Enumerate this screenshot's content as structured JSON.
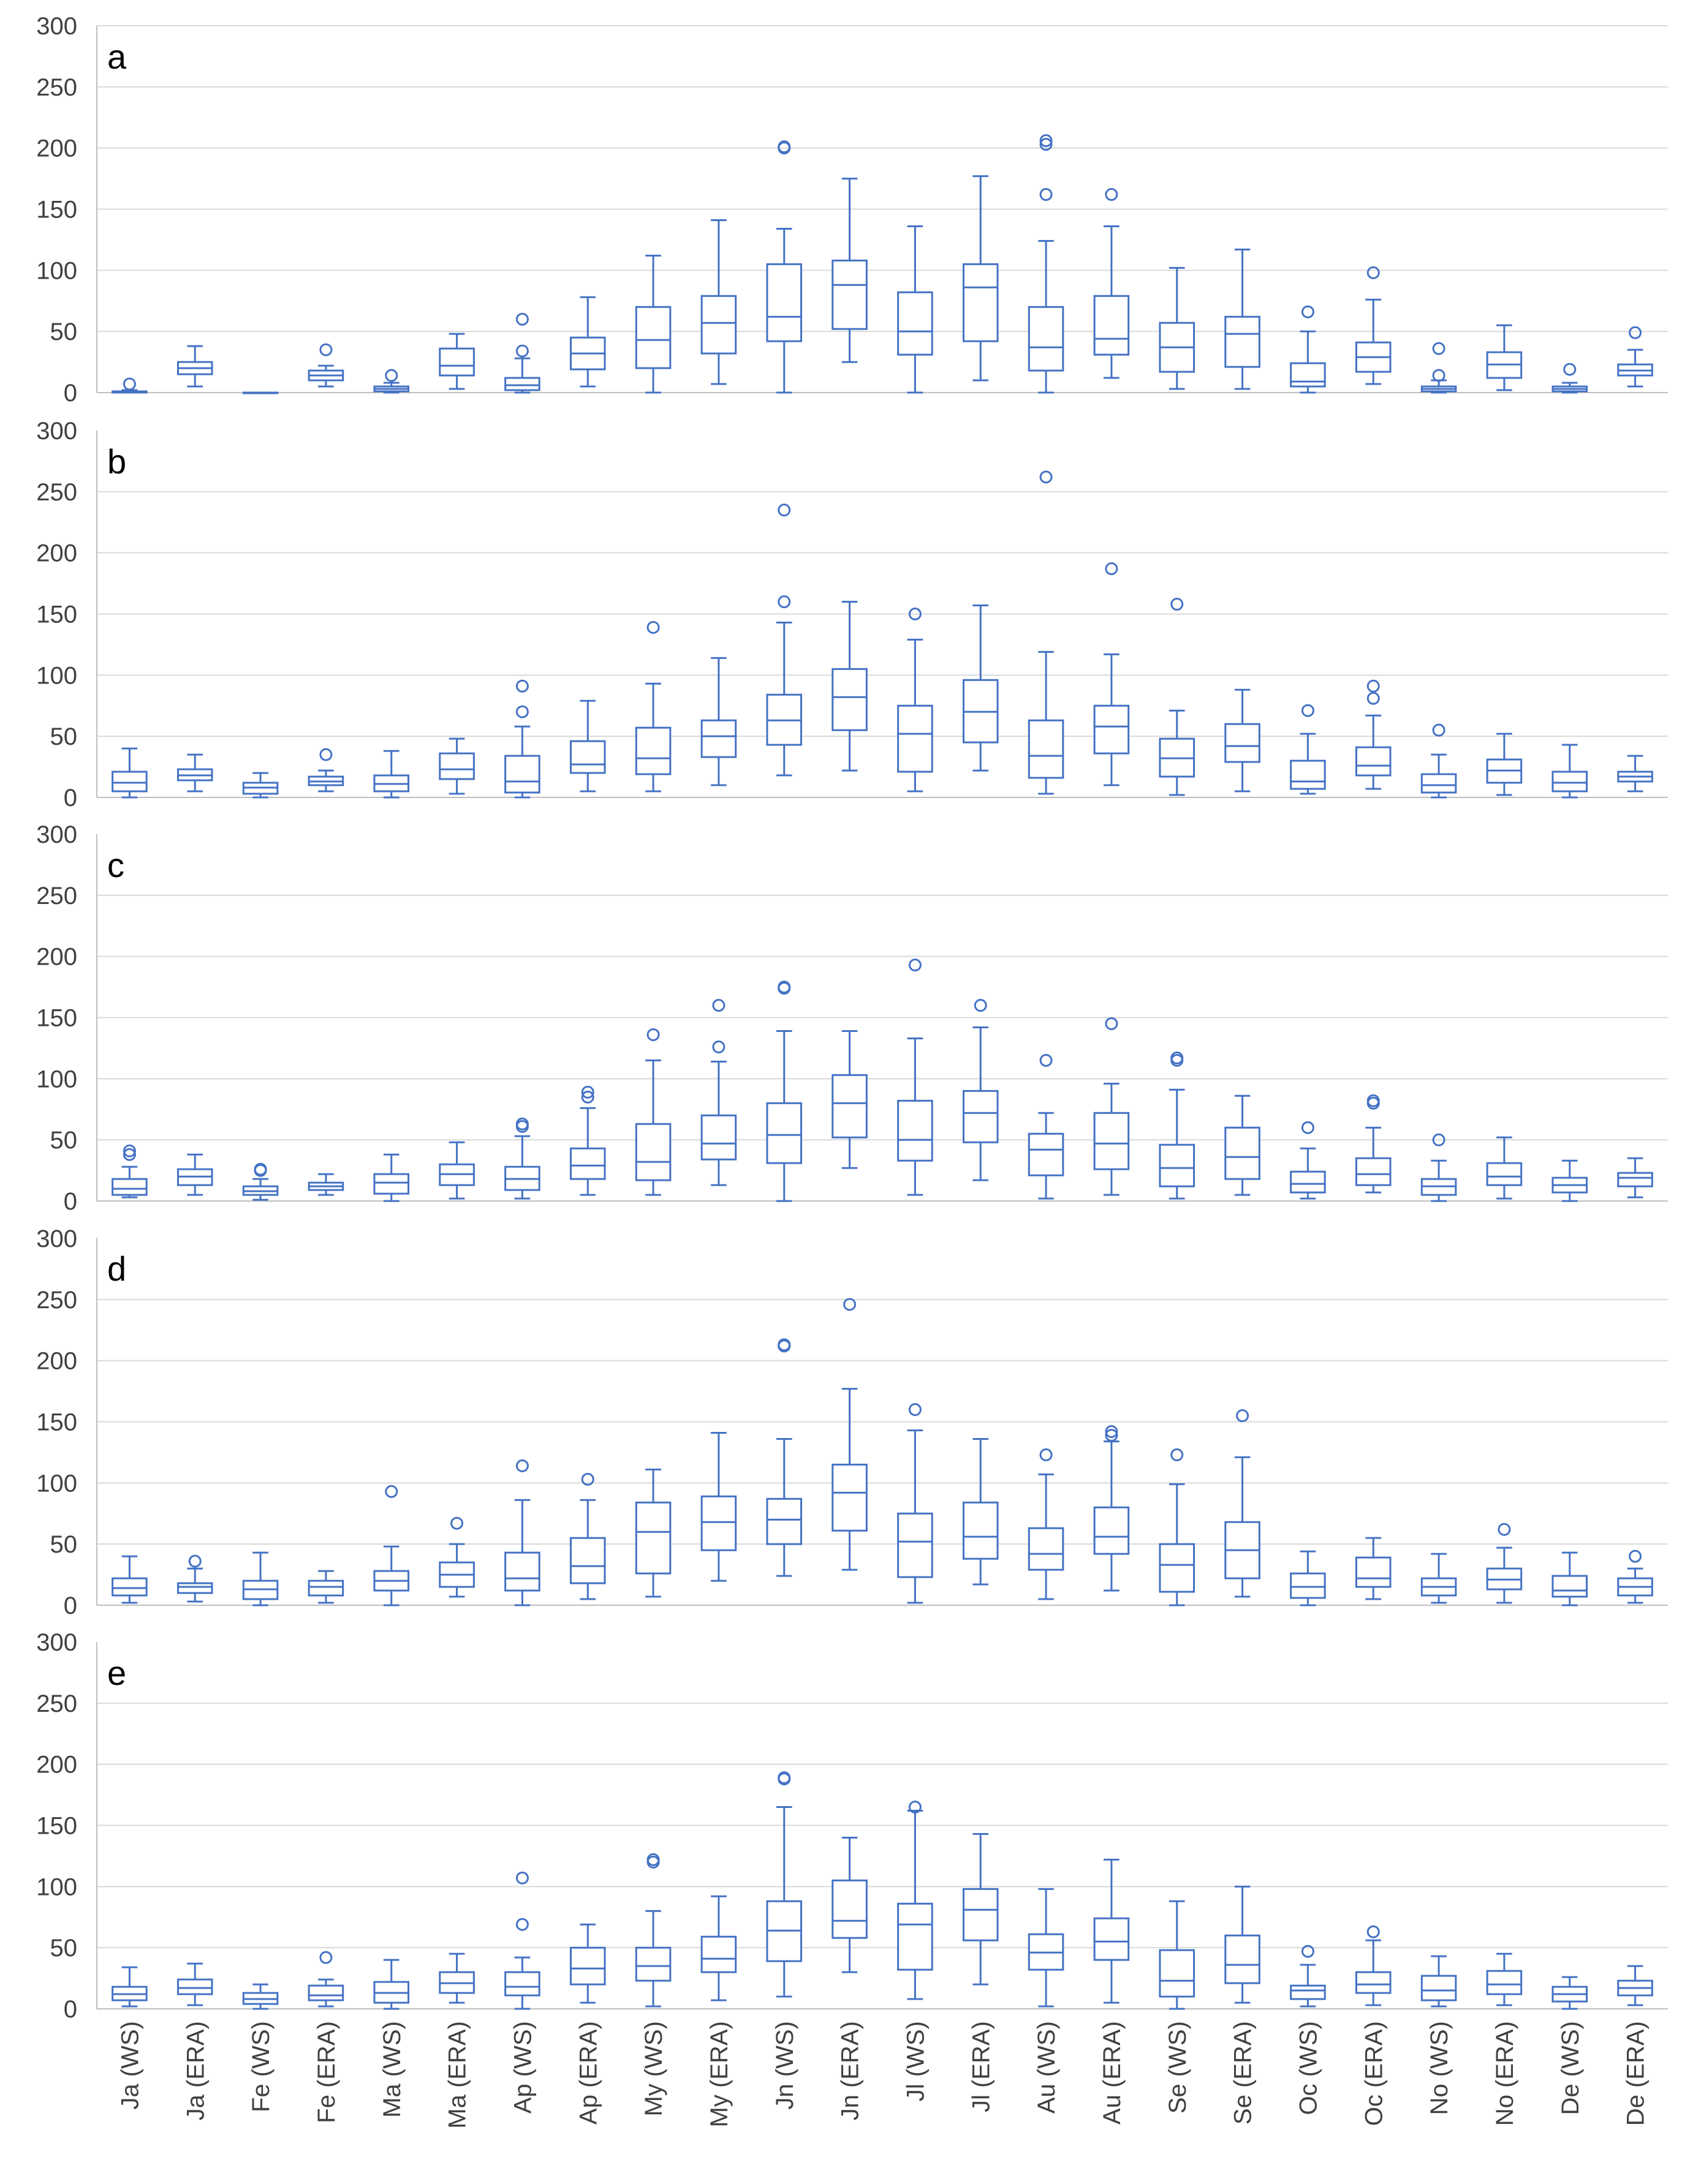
{
  "chart_data": {
    "type": "box",
    "categories": [
      "Ja (WS)",
      "Ja (ERA)",
      "Fe (WS)",
      "Fe (ERA)",
      "Ma (WS)",
      "Ma (ERA)",
      "Ap (WS)",
      "Ap (ERA)",
      "My (WS)",
      "My (ERA)",
      "Jn (WS)",
      "Jn (ERA)",
      "Jl (WS)",
      "Jl (ERA)",
      "Au (WS)",
      "Au (ERA)",
      "Se (WS)",
      "Se (ERA)",
      "Oc (WS)",
      "Oc (ERA)",
      "No (WS)",
      "No (ERA)",
      "De (WS)",
      "De (ERA)"
    ],
    "yticks": [
      "0",
      "50",
      "100",
      "150",
      "200",
      "250",
      "300"
    ],
    "ylim": [
      0,
      300
    ],
    "grid": true,
    "colors": {
      "box": "#4472C4",
      "grid": "#D9D9D9",
      "axis": "#BFBFBF"
    },
    "panels": [
      {
        "label": "a",
        "boxes": [
          [
            0,
            0,
            0,
            1,
            2,
            [
              7
            ]
          ],
          [
            5,
            15,
            20,
            25,
            38,
            []
          ],
          [
            0,
            0,
            0,
            0,
            0,
            []
          ],
          [
            5,
            10,
            14,
            18,
            22,
            [
              35
            ]
          ],
          [
            0,
            1,
            3,
            5,
            8,
            [
              14
            ]
          ],
          [
            3,
            14,
            22,
            36,
            48,
            []
          ],
          [
            0,
            2,
            6,
            12,
            28,
            [
              34,
              60
            ]
          ],
          [
            5,
            19,
            32,
            45,
            78,
            []
          ],
          [
            0,
            20,
            43,
            70,
            112,
            []
          ],
          [
            7,
            32,
            57,
            79,
            141,
            []
          ],
          [
            0,
            42,
            62,
            105,
            134,
            [
              200,
              201
            ]
          ],
          [
            25,
            52,
            88,
            108,
            175,
            []
          ],
          [
            0,
            31,
            50,
            82,
            136,
            []
          ],
          [
            10,
            42,
            86,
            105,
            177,
            []
          ],
          [
            0,
            18,
            37,
            70,
            124,
            [
              162,
              203,
              206
            ]
          ],
          [
            12,
            31,
            44,
            79,
            136,
            [
              162
            ]
          ],
          [
            3,
            17,
            37,
            57,
            102,
            []
          ],
          [
            3,
            21,
            48,
            62,
            117,
            []
          ],
          [
            0,
            5,
            9,
            24,
            50,
            [
              66
            ]
          ],
          [
            7,
            17,
            29,
            41,
            76,
            [
              98
            ]
          ],
          [
            0,
            1,
            3,
            5,
            10,
            [
              14,
              36
            ]
          ],
          [
            2,
            12,
            23,
            33,
            55,
            []
          ],
          [
            0,
            1,
            3,
            5,
            8,
            [
              19
            ]
          ],
          [
            5,
            14,
            18,
            23,
            35,
            [
              49
            ]
          ]
        ]
      },
      {
        "label": "b",
        "boxes": [
          [
            0,
            5,
            12,
            21,
            40,
            []
          ],
          [
            5,
            14,
            18,
            23,
            35,
            []
          ],
          [
            0,
            3,
            8,
            12,
            20,
            []
          ],
          [
            5,
            10,
            13,
            17,
            22,
            [
              35
            ]
          ],
          [
            0,
            5,
            11,
            18,
            38,
            []
          ],
          [
            3,
            15,
            23,
            36,
            48,
            []
          ],
          [
            0,
            4,
            13,
            34,
            58,
            [
              70,
              91
            ]
          ],
          [
            5,
            20,
            27,
            46,
            79,
            []
          ],
          [
            5,
            19,
            32,
            57,
            93,
            [
              139
            ]
          ],
          [
            10,
            33,
            50,
            63,
            114,
            []
          ],
          [
            18,
            43,
            63,
            84,
            143,
            [
              160,
              235
            ]
          ],
          [
            22,
            55,
            82,
            105,
            160,
            []
          ],
          [
            5,
            21,
            52,
            75,
            129,
            [
              150
            ]
          ],
          [
            22,
            45,
            70,
            96,
            157,
            []
          ],
          [
            3,
            16,
            34,
            63,
            119,
            [
              262
            ]
          ],
          [
            10,
            36,
            58,
            75,
            117,
            [
              187
            ]
          ],
          [
            2,
            17,
            32,
            48,
            71,
            [
              158
            ]
          ],
          [
            5,
            29,
            42,
            60,
            88,
            []
          ],
          [
            3,
            7,
            13,
            30,
            52,
            [
              71
            ]
          ],
          [
            7,
            18,
            26,
            41,
            67,
            [
              81,
              91
            ]
          ],
          [
            0,
            4,
            10,
            19,
            35,
            [
              55
            ]
          ],
          [
            2,
            12,
            22,
            31,
            52,
            []
          ],
          [
            0,
            5,
            12,
            21,
            43,
            []
          ],
          [
            5,
            13,
            17,
            21,
            34,
            []
          ]
        ]
      },
      {
        "label": "c",
        "boxes": [
          [
            3,
            5,
            10,
            18,
            28,
            [
              38,
              41
            ]
          ],
          [
            5,
            13,
            20,
            26,
            38,
            []
          ],
          [
            1,
            5,
            8,
            12,
            18,
            [
              25,
              26
            ]
          ],
          [
            5,
            9,
            12,
            15,
            22,
            []
          ],
          [
            0,
            6,
            15,
            22,
            38,
            []
          ],
          [
            2,
            13,
            22,
            30,
            48,
            []
          ],
          [
            2,
            9,
            18,
            28,
            53,
            [
              61,
              63
            ]
          ],
          [
            5,
            18,
            29,
            43,
            76,
            [
              85,
              89
            ]
          ],
          [
            5,
            17,
            32,
            63,
            115,
            [
              136
            ]
          ],
          [
            13,
            34,
            47,
            70,
            114,
            [
              126,
              160
            ]
          ],
          [
            0,
            31,
            54,
            80,
            139,
            [
              174,
              175
            ]
          ],
          [
            27,
            52,
            80,
            103,
            139,
            []
          ],
          [
            5,
            33,
            50,
            82,
            133,
            [
              193
            ]
          ],
          [
            17,
            48,
            72,
            90,
            142,
            [
              160
            ]
          ],
          [
            2,
            21,
            42,
            55,
            72,
            [
              115
            ]
          ],
          [
            5,
            26,
            47,
            72,
            96,
            [
              145
            ]
          ],
          [
            2,
            12,
            27,
            46,
            91,
            [
              115,
              117
            ]
          ],
          [
            5,
            18,
            36,
            60,
            86,
            []
          ],
          [
            2,
            7,
            14,
            24,
            43,
            [
              60
            ]
          ],
          [
            7,
            13,
            22,
            35,
            60,
            [
              80,
              82
            ]
          ],
          [
            0,
            5,
            12,
            18,
            33,
            [
              50
            ]
          ],
          [
            2,
            13,
            20,
            31,
            52,
            []
          ],
          [
            0,
            7,
            13,
            19,
            33,
            []
          ],
          [
            3,
            12,
            19,
            23,
            35,
            []
          ]
        ]
      },
      {
        "label": "d",
        "boxes": [
          [
            2,
            8,
            14,
            22,
            40,
            []
          ],
          [
            3,
            10,
            15,
            18,
            30,
            [
              36
            ]
          ],
          [
            0,
            5,
            13,
            20,
            43,
            []
          ],
          [
            2,
            8,
            15,
            20,
            28,
            []
          ],
          [
            0,
            12,
            20,
            28,
            48,
            [
              93
            ]
          ],
          [
            7,
            15,
            25,
            35,
            50,
            [
              67
            ]
          ],
          [
            0,
            12,
            22,
            43,
            86,
            [
              114
            ]
          ],
          [
            5,
            18,
            32,
            55,
            86,
            [
              103
            ]
          ],
          [
            7,
            26,
            60,
            84,
            111,
            []
          ],
          [
            20,
            45,
            68,
            89,
            141,
            []
          ],
          [
            24,
            50,
            70,
            87,
            136,
            [
              212,
              213
            ]
          ],
          [
            29,
            61,
            92,
            115,
            177,
            [
              246
            ]
          ],
          [
            2,
            23,
            52,
            75,
            143,
            [
              160
            ]
          ],
          [
            17,
            38,
            56,
            84,
            136,
            []
          ],
          [
            5,
            29,
            42,
            63,
            107,
            [
              123
            ]
          ],
          [
            12,
            42,
            56,
            80,
            134,
            [
              139,
              142
            ]
          ],
          [
            0,
            11,
            33,
            50,
            99,
            [
              123
            ]
          ],
          [
            7,
            22,
            45,
            68,
            121,
            [
              155
            ]
          ],
          [
            0,
            6,
            15,
            26,
            44,
            []
          ],
          [
            5,
            15,
            22,
            39,
            55,
            []
          ],
          [
            2,
            8,
            15,
            22,
            42,
            []
          ],
          [
            2,
            13,
            21,
            30,
            47,
            [
              62
            ]
          ],
          [
            0,
            7,
            12,
            24,
            43,
            []
          ],
          [
            2,
            8,
            15,
            22,
            30,
            [
              40
            ]
          ]
        ]
      },
      {
        "label": "e",
        "boxes": [
          [
            2,
            7,
            12,
            18,
            34,
            []
          ],
          [
            3,
            12,
            17,
            24,
            37,
            []
          ],
          [
            0,
            4,
            8,
            13,
            20,
            []
          ],
          [
            2,
            7,
            11,
            19,
            24,
            [
              42
            ]
          ],
          [
            0,
            5,
            13,
            22,
            40,
            []
          ],
          [
            5,
            13,
            21,
            30,
            45,
            []
          ],
          [
            0,
            11,
            18,
            30,
            42,
            [
              69,
              107
            ]
          ],
          [
            5,
            20,
            33,
            50,
            69,
            []
          ],
          [
            2,
            23,
            35,
            50,
            80,
            [
              120,
              122
            ]
          ],
          [
            7,
            30,
            41,
            59,
            92,
            []
          ],
          [
            10,
            39,
            64,
            88,
            165,
            [
              188,
              189
            ]
          ],
          [
            30,
            58,
            72,
            105,
            140,
            []
          ],
          [
            8,
            32,
            69,
            86,
            162,
            [
              165
            ]
          ],
          [
            20,
            56,
            81,
            98,
            143,
            []
          ],
          [
            2,
            32,
            46,
            61,
            98,
            []
          ],
          [
            5,
            40,
            55,
            74,
            122,
            []
          ],
          [
            0,
            10,
            23,
            48,
            88,
            []
          ],
          [
            5,
            21,
            36,
            60,
            100,
            []
          ],
          [
            2,
            8,
            15,
            19,
            36,
            [
              47
            ]
          ],
          [
            3,
            13,
            20,
            30,
            56,
            [
              63
            ]
          ],
          [
            2,
            7,
            15,
            27,
            43,
            []
          ],
          [
            3,
            12,
            20,
            31,
            45,
            []
          ],
          [
            0,
            6,
            12,
            18,
            26,
            []
          ],
          [
            3,
            11,
            17,
            23,
            35,
            []
          ]
        ]
      }
    ]
  }
}
